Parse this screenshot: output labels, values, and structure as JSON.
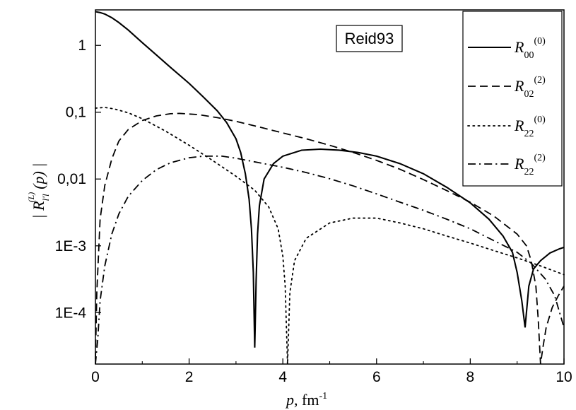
{
  "chart_data": {
    "type": "line",
    "annotation": "Reid93",
    "xlabel": {
      "symbol": "p",
      "rest": ", fm",
      "sup": "-1"
    },
    "ylabel": {
      "left": "| R",
      "sub": "l'l",
      "sup": "(L)",
      "right": "(p) |"
    },
    "x_range": [
      0,
      10
    ],
    "y_range": [
      1.7e-05,
      3.4
    ],
    "y_scale": "log",
    "x_ticks": [
      {
        "value": 0,
        "label": "0"
      },
      {
        "value": 2,
        "label": "2"
      },
      {
        "value": 4,
        "label": "4"
      },
      {
        "value": 6,
        "label": "6"
      },
      {
        "value": 8,
        "label": "8"
      },
      {
        "value": 10,
        "label": "10"
      }
    ],
    "y_ticks": [
      {
        "value": 0.0001,
        "label": "1E-4"
      },
      {
        "value": 0.001,
        "label": "1E-3"
      },
      {
        "value": 0.01,
        "label": "0,01"
      },
      {
        "value": 0.1,
        "label": "0,1"
      },
      {
        "value": 1,
        "label": "1"
      }
    ],
    "legend_placement": "top-right",
    "series": [
      {
        "name": "R00(0)",
        "legend": {
          "sub": "00",
          "sup": "(0)"
        },
        "dash": "solid",
        "points": [
          [
            0,
            3.2
          ],
          [
            0.1,
            3.1
          ],
          [
            0.2,
            2.95
          ],
          [
            0.35,
            2.6
          ],
          [
            0.5,
            2.2
          ],
          [
            0.7,
            1.7
          ],
          [
            1,
            1.1
          ],
          [
            1.3,
            0.72
          ],
          [
            1.6,
            0.47
          ],
          [
            2,
            0.27
          ],
          [
            2.3,
            0.17
          ],
          [
            2.6,
            0.105
          ],
          [
            2.8,
            0.07
          ],
          [
            3,
            0.04
          ],
          [
            3.1,
            0.025
          ],
          [
            3.2,
            0.012
          ],
          [
            3.28,
            0.005
          ],
          [
            3.33,
            0.0018
          ],
          [
            3.37,
            0.0004
          ],
          [
            3.4,
            3e-05
          ],
          [
            3.43,
            0.0003
          ],
          [
            3.46,
            0.0015
          ],
          [
            3.5,
            0.004
          ],
          [
            3.6,
            0.01
          ],
          [
            3.8,
            0.017
          ],
          [
            4,
            0.022
          ],
          [
            4.4,
            0.027
          ],
          [
            4.8,
            0.028
          ],
          [
            5.2,
            0.027
          ],
          [
            5.6,
            0.025
          ],
          [
            6,
            0.022
          ],
          [
            6.5,
            0.017
          ],
          [
            7,
            0.012
          ],
          [
            7.5,
            0.0075
          ],
          [
            8,
            0.0044
          ],
          [
            8.4,
            0.0025
          ],
          [
            8.7,
            0.0014
          ],
          [
            8.9,
            0.0008
          ],
          [
            9,
            0.0004
          ],
          [
            9.1,
            0.00015
          ],
          [
            9.17,
            6e-05
          ],
          [
            9.25,
            0.00025
          ],
          [
            9.35,
            0.00045
          ],
          [
            9.5,
            0.0006
          ],
          [
            9.7,
            0.00078
          ],
          [
            9.9,
            0.0009
          ],
          [
            10,
            0.00095
          ]
        ]
      },
      {
        "name": "R02(2)",
        "legend": {
          "sub": "02",
          "sup": "(2)"
        },
        "dash": "dashed",
        "points": [
          [
            0,
            2e-05
          ],
          [
            0.03,
            0.0002
          ],
          [
            0.1,
            0.0025
          ],
          [
            0.2,
            0.008
          ],
          [
            0.35,
            0.02
          ],
          [
            0.5,
            0.037
          ],
          [
            0.7,
            0.055
          ],
          [
            1,
            0.075
          ],
          [
            1.3,
            0.088
          ],
          [
            1.6,
            0.095
          ],
          [
            1.8,
            0.096
          ],
          [
            2.2,
            0.092
          ],
          [
            2.6,
            0.083
          ],
          [
            3,
            0.073
          ],
          [
            3.5,
            0.06
          ],
          [
            4,
            0.049
          ],
          [
            4.5,
            0.04
          ],
          [
            5,
            0.032
          ],
          [
            5.5,
            0.025
          ],
          [
            6,
            0.019
          ],
          [
            6.5,
            0.014
          ],
          [
            7,
            0.0098
          ],
          [
            7.5,
            0.0067
          ],
          [
            8,
            0.0045
          ],
          [
            8.5,
            0.0028
          ],
          [
            9,
            0.0015
          ],
          [
            9.2,
            0.001
          ],
          [
            9.3,
            0.0006
          ],
          [
            9.4,
            0.00025
          ],
          [
            9.45,
            8e-05
          ],
          [
            9.5,
            1.7e-05
          ],
          [
            9.55,
            3e-05
          ],
          [
            9.62,
            6e-05
          ],
          [
            9.75,
            0.00012
          ],
          [
            9.88,
            0.00018
          ],
          [
            10,
            0.00025
          ]
        ]
      },
      {
        "name": "R22(0)",
        "legend": {
          "sub": "22",
          "sup": "(0)"
        },
        "dash": "dotted",
        "points": [
          [
            0,
            0.115
          ],
          [
            0.2,
            0.118
          ],
          [
            0.4,
            0.112
          ],
          [
            0.7,
            0.098
          ],
          [
            1,
            0.08
          ],
          [
            1.5,
            0.052
          ],
          [
            2,
            0.032
          ],
          [
            2.5,
            0.019
          ],
          [
            3,
            0.011
          ],
          [
            3.4,
            0.0068
          ],
          [
            3.7,
            0.0038
          ],
          [
            3.9,
            0.0018
          ],
          [
            4,
            0.0007
          ],
          [
            4.05,
            0.00025
          ],
          [
            4.1,
            1.7e-05
          ],
          [
            4.15,
            0.0002
          ],
          [
            4.25,
            0.0006
          ],
          [
            4.5,
            0.0013
          ],
          [
            5,
            0.0022
          ],
          [
            5.5,
            0.0026
          ],
          [
            6,
            0.0026
          ],
          [
            6.5,
            0.0022
          ],
          [
            7,
            0.0018
          ],
          [
            7.5,
            0.0014
          ],
          [
            8,
            0.0011
          ],
          [
            8.5,
            0.00085
          ],
          [
            9,
            0.00066
          ],
          [
            9.5,
            0.0005
          ],
          [
            10,
            0.00037
          ]
        ]
      },
      {
        "name": "R22(2)",
        "legend": {
          "sub": "22",
          "sup": "(2)"
        },
        "dash": "dashdot",
        "points": [
          [
            0,
            1.7e-05
          ],
          [
            0.05,
            4e-05
          ],
          [
            0.1,
            0.00015
          ],
          [
            0.2,
            0.0005
          ],
          [
            0.35,
            0.0015
          ],
          [
            0.5,
            0.003
          ],
          [
            0.7,
            0.0055
          ],
          [
            1,
            0.0095
          ],
          [
            1.3,
            0.0138
          ],
          [
            1.6,
            0.0175
          ],
          [
            2,
            0.0208
          ],
          [
            2.3,
            0.022
          ],
          [
            2.7,
            0.022
          ],
          [
            3,
            0.0205
          ],
          [
            3.5,
            0.0175
          ],
          [
            4,
            0.015
          ],
          [
            4.5,
            0.0125
          ],
          [
            5,
            0.0101
          ],
          [
            5.5,
            0.0079
          ],
          [
            6,
            0.006
          ],
          [
            6.5,
            0.0045
          ],
          [
            7,
            0.0034
          ],
          [
            7.5,
            0.0025
          ],
          [
            8,
            0.0018
          ],
          [
            8.5,
            0.0012
          ],
          [
            9,
            0.0008
          ],
          [
            9.3,
            0.00055
          ],
          [
            9.6,
            0.00032
          ],
          [
            9.8,
            0.00018
          ],
          [
            10,
            6e-05
          ]
        ]
      }
    ]
  }
}
